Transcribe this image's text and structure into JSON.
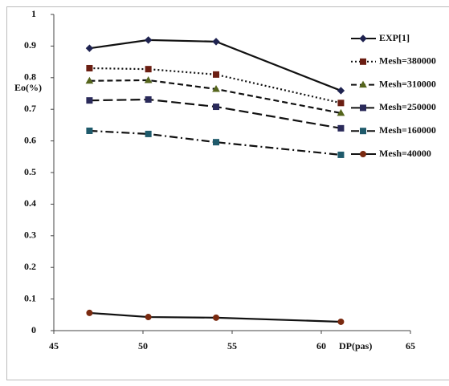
{
  "chart_data": {
    "type": "line",
    "x_label": "DP(pas)",
    "y_label": "Eo(%)",
    "xlim": [
      45,
      65
    ],
    "xticks": [
      45,
      50,
      55,
      60,
      65
    ],
    "ylim": [
      0,
      1
    ],
    "yticks": [
      0,
      0.1,
      0.2,
      0.3,
      0.4,
      0.5,
      0.6,
      0.7,
      0.8,
      0.9,
      1
    ],
    "x": [
      47,
      50.3,
      54.1,
      61.1
    ],
    "series": [
      {
        "name": "EXP[1]",
        "color": "#1f2350",
        "marker": "diamond",
        "dash": "solid",
        "values": [
          0.893,
          0.919,
          0.914,
          0.759
        ]
      },
      {
        "name": "Mesh=380000",
        "color": "#6b1e12",
        "marker": "square",
        "dash": "dotted",
        "values": [
          0.83,
          0.827,
          0.81,
          0.72
        ]
      },
      {
        "name": "Mesh=310000",
        "color": "#55651c",
        "marker": "triangle",
        "dash": "short",
        "values": [
          0.79,
          0.792,
          0.764,
          0.688
        ]
      },
      {
        "name": "Mesh=250000",
        "color": "#2a2a5a",
        "marker": "square",
        "dash": "long",
        "values": [
          0.728,
          0.731,
          0.708,
          0.64
        ]
      },
      {
        "name": "Mesh=160000",
        "color": "#1f5a6b",
        "marker": "square",
        "dash": "dashdot",
        "values": [
          0.632,
          0.622,
          0.596,
          0.556
        ]
      },
      {
        "name": "Mesh=40000",
        "color": "#7a2a10",
        "marker": "circle",
        "dash": "solid",
        "values": [
          0.056,
          0.043,
          0.041,
          0.028
        ]
      }
    ]
  }
}
